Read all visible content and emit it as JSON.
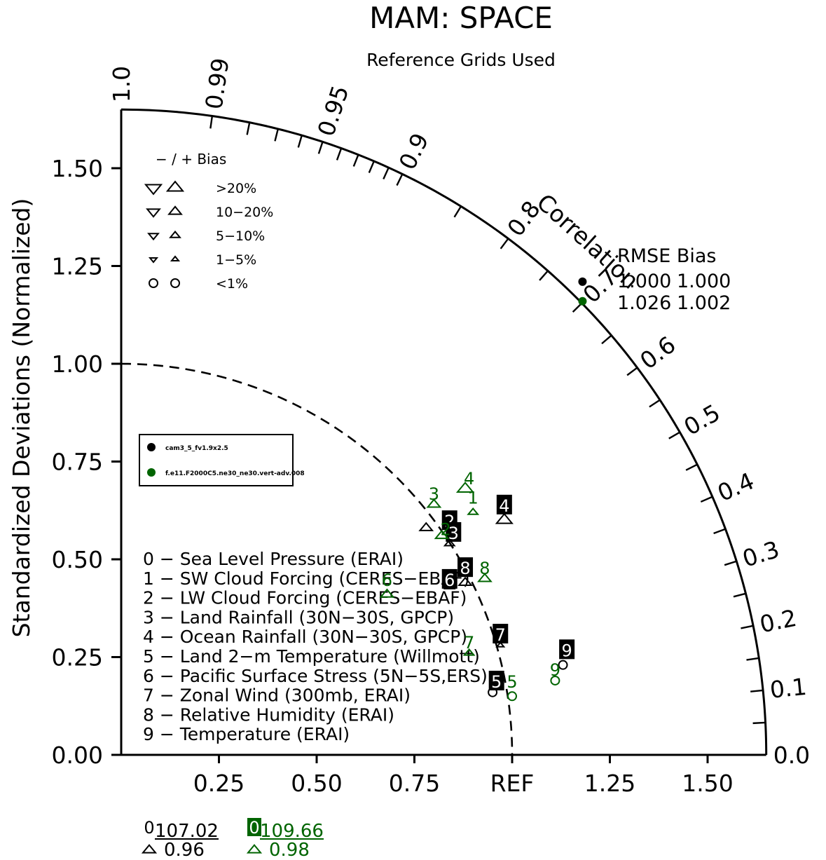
{
  "chart_data": {
    "type": "scatter",
    "projection": "taylor-diagram",
    "title": "MAM: SPACE",
    "subtitle": "Reference Grids Used",
    "ylabel": "Standardized Deviations (Normalized)",
    "correlation_label": "Correlation",
    "ref_label": "REF",
    "xlim": [
      0,
      1.65
    ],
    "ylim": [
      0,
      1.65
    ],
    "x_ticks": [
      {
        "v": 0.25,
        "label": "0.25"
      },
      {
        "v": 0.5,
        "label": "0.50"
      },
      {
        "v": 0.75,
        "label": "0.75"
      },
      {
        "v": 1.25,
        "label": "1.25"
      },
      {
        "v": 1.5,
        "label": "1.50"
      }
    ],
    "y_ticks": [
      {
        "v": 0.0,
        "label": "0.00"
      },
      {
        "v": 0.25,
        "label": "0.25"
      },
      {
        "v": 0.5,
        "label": "0.50"
      },
      {
        "v": 0.75,
        "label": "0.75"
      },
      {
        "v": 1.0,
        "label": "1.00"
      },
      {
        "v": 1.25,
        "label": "1.25"
      },
      {
        "v": 1.5,
        "label": "1.50"
      }
    ],
    "corr_labels": [
      {
        "r": 0.0,
        "label": "0.0"
      },
      {
        "r": 0.1,
        "label": "0.1"
      },
      {
        "r": 0.2,
        "label": "0.2"
      },
      {
        "r": 0.3,
        "label": "0.3"
      },
      {
        "r": 0.4,
        "label": "0.4"
      },
      {
        "r": 0.5,
        "label": "0.5"
      },
      {
        "r": 0.6,
        "label": "0.6"
      },
      {
        "r": 0.7,
        "label": "0.7"
      },
      {
        "r": 0.8,
        "label": "0.8"
      },
      {
        "r": 0.9,
        "label": "0.9"
      },
      {
        "r": 0.95,
        "label": "0.95"
      },
      {
        "r": 0.99,
        "label": "0.99"
      },
      {
        "r": 1.0,
        "label": "1.0"
      }
    ],
    "corr_ticks": [
      0.05,
      0.1,
      0.15,
      0.2,
      0.25,
      0.3,
      0.35,
      0.4,
      0.45,
      0.5,
      0.55,
      0.6,
      0.65,
      0.7,
      0.75,
      0.8,
      0.85,
      0.9,
      0.91,
      0.92,
      0.93,
      0.94,
      0.95,
      0.96,
      0.97,
      0.98,
      0.99
    ],
    "bias_legend": {
      "header": "− / +     Bias",
      "rows": [
        {
          "label": ">20%",
          "shape": "triangle",
          "size": 1.0
        },
        {
          "label": "10−20%",
          "shape": "triangle",
          "size": 0.8
        },
        {
          "label": "5−10%",
          "shape": "triangle",
          "size": 0.62
        },
        {
          "label": "1−5%",
          "shape": "triangle",
          "size": 0.45
        },
        {
          "label": "<1%",
          "shape": "circle",
          "size": 0.55
        }
      ]
    },
    "cases_legend": [
      {
        "name": "cam3_5_fv1.9x2.5",
        "color": "#000000"
      },
      {
        "name": "f.e11.F2000C5.ne30_ne30.vert-adv.008",
        "color": "#006400"
      }
    ],
    "variables": [
      "0 − Sea Level Pressure (ERAI)",
      "1 − SW Cloud Forcing (CERES−EBAF)",
      "2 − LW Cloud Forcing (CERES−EBAF)",
      "3 − Land Rainfall (30N−30S, GPCP)",
      "4 − Ocean Rainfall (30N−30S, GPCP)",
      "5 − Land 2−m Temperature (Willmott)",
      "6 − Pacific Surface Stress (5N−5S,ERS)",
      "7 − Zonal Wind (300mb, ERAI)",
      "8 − Relative Humidity (ERAI)",
      "9 − Temperature (ERAI)"
    ],
    "rmse_bias_table": {
      "header": "RMSE  Bias",
      "rows": [
        {
          "rmse": "1.000",
          "bias": "1.000",
          "color": "#000000"
        },
        {
          "rmse": "1.026",
          "bias": "1.002",
          "color": "#006400"
        }
      ]
    },
    "series": [
      {
        "name": "cam3_5_fv1.9x2.5",
        "color": "#000000",
        "summary_point": {
          "x": 1.18,
          "y": 1.21
        },
        "points": [
          {
            "id": "2",
            "x": 0.84,
            "y": 0.6,
            "bias": "up",
            "bias_size": 0.8,
            "mx": 0.78,
            "my": 0.58
          },
          {
            "id": "3",
            "x": 0.85,
            "y": 0.57,
            "bias": "up",
            "bias_size": 0.62,
            "mx": 0.84,
            "my": 0.54
          },
          {
            "id": "4",
            "x": 0.98,
            "y": 0.64,
            "bias": "up",
            "bias_size": 1.0,
            "mx": 0.98,
            "my": 0.6
          },
          {
            "id": "6",
            "x": 0.84,
            "y": 0.45,
            "bias": "up",
            "bias_size": 0.62,
            "mx": 0.84,
            "my": 0.43
          },
          {
            "id": "8",
            "x": 0.88,
            "y": 0.48,
            "bias": "up",
            "bias_size": 0.8,
            "mx": 0.88,
            "my": 0.44
          },
          {
            "id": "7",
            "x": 0.97,
            "y": 0.31,
            "bias": "up",
            "bias_size": 0.45,
            "mx": 0.97,
            "my": 0.28
          },
          {
            "id": "5",
            "x": 0.96,
            "y": 0.19,
            "bias": "circle",
            "bias_size": 0.55,
            "mx": 0.95,
            "my": 0.16
          },
          {
            "id": "9",
            "x": 1.14,
            "y": 0.27,
            "bias": "circle",
            "bias_size": 0.55,
            "mx": 1.13,
            "my": 0.23
          }
        ]
      },
      {
        "name": "f.e11.F2000C5.ne30_ne30.vert-adv.008",
        "color": "#006400",
        "summary_point": {
          "x": 1.18,
          "y": 1.16
        },
        "points": [
          {
            "id": "1",
            "x": 0.9,
            "y": 0.66,
            "bias": "up",
            "bias_size": 0.62,
            "mx": 0.9,
            "my": 0.62
          },
          {
            "id": "3",
            "x": 0.8,
            "y": 0.67,
            "bias": "up",
            "bias_size": 0.8,
            "mx": 0.8,
            "my": 0.64
          },
          {
            "id": "4",
            "x": 0.89,
            "y": 0.71,
            "bias": "up",
            "bias_size": 1.0,
            "mx": 0.88,
            "my": 0.68
          },
          {
            "id": "2",
            "x": 0.83,
            "y": 0.58,
            "bias": "up",
            "bias_size": 0.8,
            "mx": 0.82,
            "my": 0.56
          },
          {
            "id": "6",
            "x": 0.68,
            "y": 0.45,
            "bias": "up",
            "bias_size": 0.8,
            "mx": 0.68,
            "my": 0.41
          },
          {
            "id": "8",
            "x": 0.93,
            "y": 0.48,
            "bias": "up",
            "bias_size": 0.8,
            "mx": 0.93,
            "my": 0.45
          },
          {
            "id": "7",
            "x": 0.89,
            "y": 0.29,
            "bias": "up",
            "bias_size": 0.62,
            "mx": 0.89,
            "my": 0.26
          },
          {
            "id": "5",
            "x": 1.0,
            "y": 0.19,
            "bias": "circle",
            "bias_size": 0.55,
            "mx": 1.0,
            "my": 0.15
          },
          {
            "id": "9",
            "x": 1.11,
            "y": 0.22,
            "bias": "circle",
            "bias_size": 0.55,
            "mx": 1.11,
            "my": 0.19
          }
        ]
      }
    ],
    "outliers": [
      {
        "series": 0,
        "id": "0",
        "value": "107.02",
        "bias": "0.96",
        "color": "#000000",
        "boxed": false
      },
      {
        "series": 1,
        "id": "0",
        "value": "109.66",
        "bias": "0.98",
        "color": "#006400",
        "boxed": true
      }
    ]
  }
}
